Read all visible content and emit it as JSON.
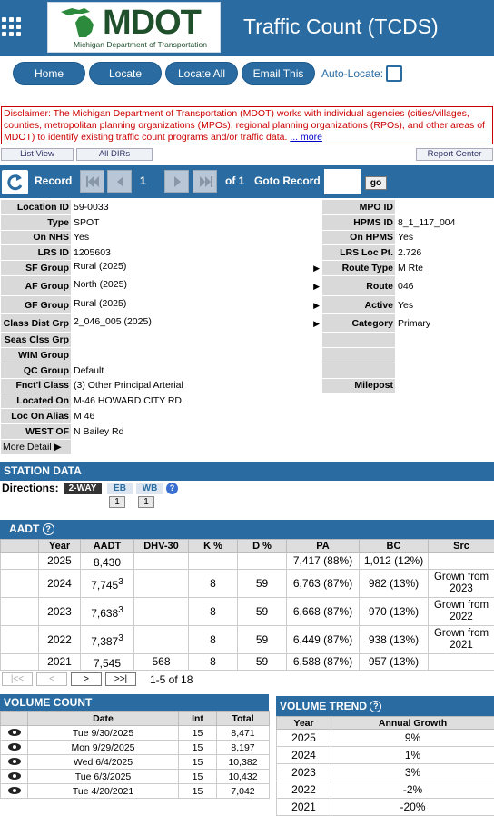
{
  "header": {
    "title": "Traffic Count (TCDS)",
    "logo_text": "MDOT",
    "logo_subtitle": "Michigan Department of Transportation",
    "bg_color": "#2a6ca1"
  },
  "nav": {
    "home": "Home",
    "locate": "Locate",
    "locate_all": "Locate All",
    "email_this": "Email This",
    "auto_locate": "Auto-Locate:"
  },
  "disclaimer": {
    "text": "Disclaimer: The Michigan Department of Transportation (MDOT) works with individual agencies (cities/villages, counties, metropolitan planning organizations (MPOs), regional planning organizations (RPOs), and other areas of MDOT) to identify existing traffic count programs and/or traffic data.",
    "more": "... more"
  },
  "view_buttons": {
    "list_view": "List View",
    "all_dirs": "All DIRs",
    "report_center": "Report Center"
  },
  "record_bar": {
    "record_label": "Record",
    "current": "1",
    "of_total": "of 1",
    "goto_label": "Goto Record",
    "goto_value": "",
    "go": "go"
  },
  "details": {
    "location_id_label": "Location ID",
    "location_id": "59-0033",
    "mpo_id_label": "MPO ID",
    "mpo_id": "",
    "type_label": "Type",
    "type": "SPOT",
    "hpms_id_label": "HPMS ID",
    "hpms_id": "8_1_117_004",
    "on_nhs_label": "On NHS",
    "on_nhs": "Yes",
    "on_hpms_label": "On HPMS",
    "on_hpms": "Yes",
    "lrs_id_label": "LRS ID",
    "lrs_id": "1205603",
    "lrs_loc_label": "LRS Loc Pt.",
    "lrs_loc": "2.726",
    "sf_group_label": "SF Group",
    "sf_group": "Rural (2025)",
    "route_type_label": "Route Type",
    "route_type": "M Rte",
    "af_group_label": "AF Group",
    "af_group": "North (2025)",
    "route_label": "Route",
    "route": "046",
    "gf_group_label": "GF Group",
    "gf_group": "Rural (2025)",
    "active_label": "Active",
    "active": "Yes",
    "class_dist_label": "Class Dist Grp",
    "class_dist": "2_046_005 (2025)",
    "category_label": "Category",
    "category": "Primary",
    "seas_clss_label": "Seas Clss Grp",
    "seas_clss": "",
    "wim_label": "WIM Group",
    "wim": "",
    "qc_label": "QC Group",
    "qc": "Default",
    "fnct_label": "Fnct'l Class",
    "fnct": "(3) Other Principal Arterial",
    "milepost_label": "Milepost",
    "milepost": "",
    "located_on_label": "Located On",
    "located_on": "M-46 HOWARD CITY RD.",
    "loc_alias_label": "Loc On Alias",
    "loc_alias": "M 46",
    "west_of_label": "WEST OF",
    "west_of": "N Bailey Rd",
    "more_detail": "More Detail"
  },
  "station": {
    "title": "STATION DATA",
    "directions_label": "Directions:",
    "dirs": [
      {
        "label": "2-WAY",
        "count": ""
      },
      {
        "label": "EB",
        "count": "1"
      },
      {
        "label": "WB",
        "count": "1"
      }
    ]
  },
  "aadt": {
    "title": "AADT",
    "headers": [
      "Year",
      "AADT",
      "DHV-30",
      "K %",
      "D %",
      "PA",
      "BC",
      "Src"
    ],
    "rows": [
      {
        "year": "2025",
        "aadt": "8,430",
        "sup": "",
        "dhv": "",
        "k": "",
        "d": "",
        "pa": "7,417 (88%)",
        "bc": "1,012 (12%)",
        "src": ""
      },
      {
        "year": "2024",
        "aadt": "7,745",
        "sup": "3",
        "dhv": "",
        "k": "8",
        "d": "59",
        "pa": "6,763 (87%)",
        "bc": "982 (13%)",
        "src": "Grown from 2023"
      },
      {
        "year": "2023",
        "aadt": "7,638",
        "sup": "3",
        "dhv": "",
        "k": "8",
        "d": "59",
        "pa": "6,668 (87%)",
        "bc": "970 (13%)",
        "src": "Grown from 2022"
      },
      {
        "year": "2022",
        "aadt": "7,387",
        "sup": "3",
        "dhv": "",
        "k": "8",
        "d": "59",
        "pa": "6,449 (87%)",
        "bc": "938 (13%)",
        "src": "Grown from 2021"
      },
      {
        "year": "2021",
        "aadt": "7,545",
        "sup": "",
        "dhv": "568",
        "k": "8",
        "d": "59",
        "pa": "6,588 (87%)",
        "bc": "957 (13%)",
        "src": ""
      }
    ],
    "pager": {
      "first": "|<<",
      "prev": "<",
      "next": ">",
      "last": ">>|",
      "range": "1-5 of 18"
    }
  },
  "volume_count": {
    "title": "VOLUME COUNT",
    "headers": [
      "",
      "Date",
      "Int",
      "Total"
    ],
    "rows": [
      {
        "date": "Tue 9/30/2025",
        "int": "15",
        "total": "8,471"
      },
      {
        "date": "Mon 9/29/2025",
        "int": "15",
        "total": "8,197"
      },
      {
        "date": "Wed 6/4/2025",
        "int": "15",
        "total": "10,382"
      },
      {
        "date": "Tue 6/3/2025",
        "int": "15",
        "total": "10,432"
      },
      {
        "date": "Tue 4/20/2021",
        "int": "15",
        "total": "7,042"
      }
    ]
  },
  "volume_trend": {
    "title": "VOLUME TREND",
    "headers": [
      "Year",
      "Annual Growth"
    ],
    "rows": [
      {
        "year": "2025",
        "growth": "9%"
      },
      {
        "year": "2024",
        "growth": "1%"
      },
      {
        "year": "2023",
        "growth": "3%"
      },
      {
        "year": "2022",
        "growth": "-2%"
      },
      {
        "year": "2021",
        "growth": "-20%"
      }
    ]
  }
}
